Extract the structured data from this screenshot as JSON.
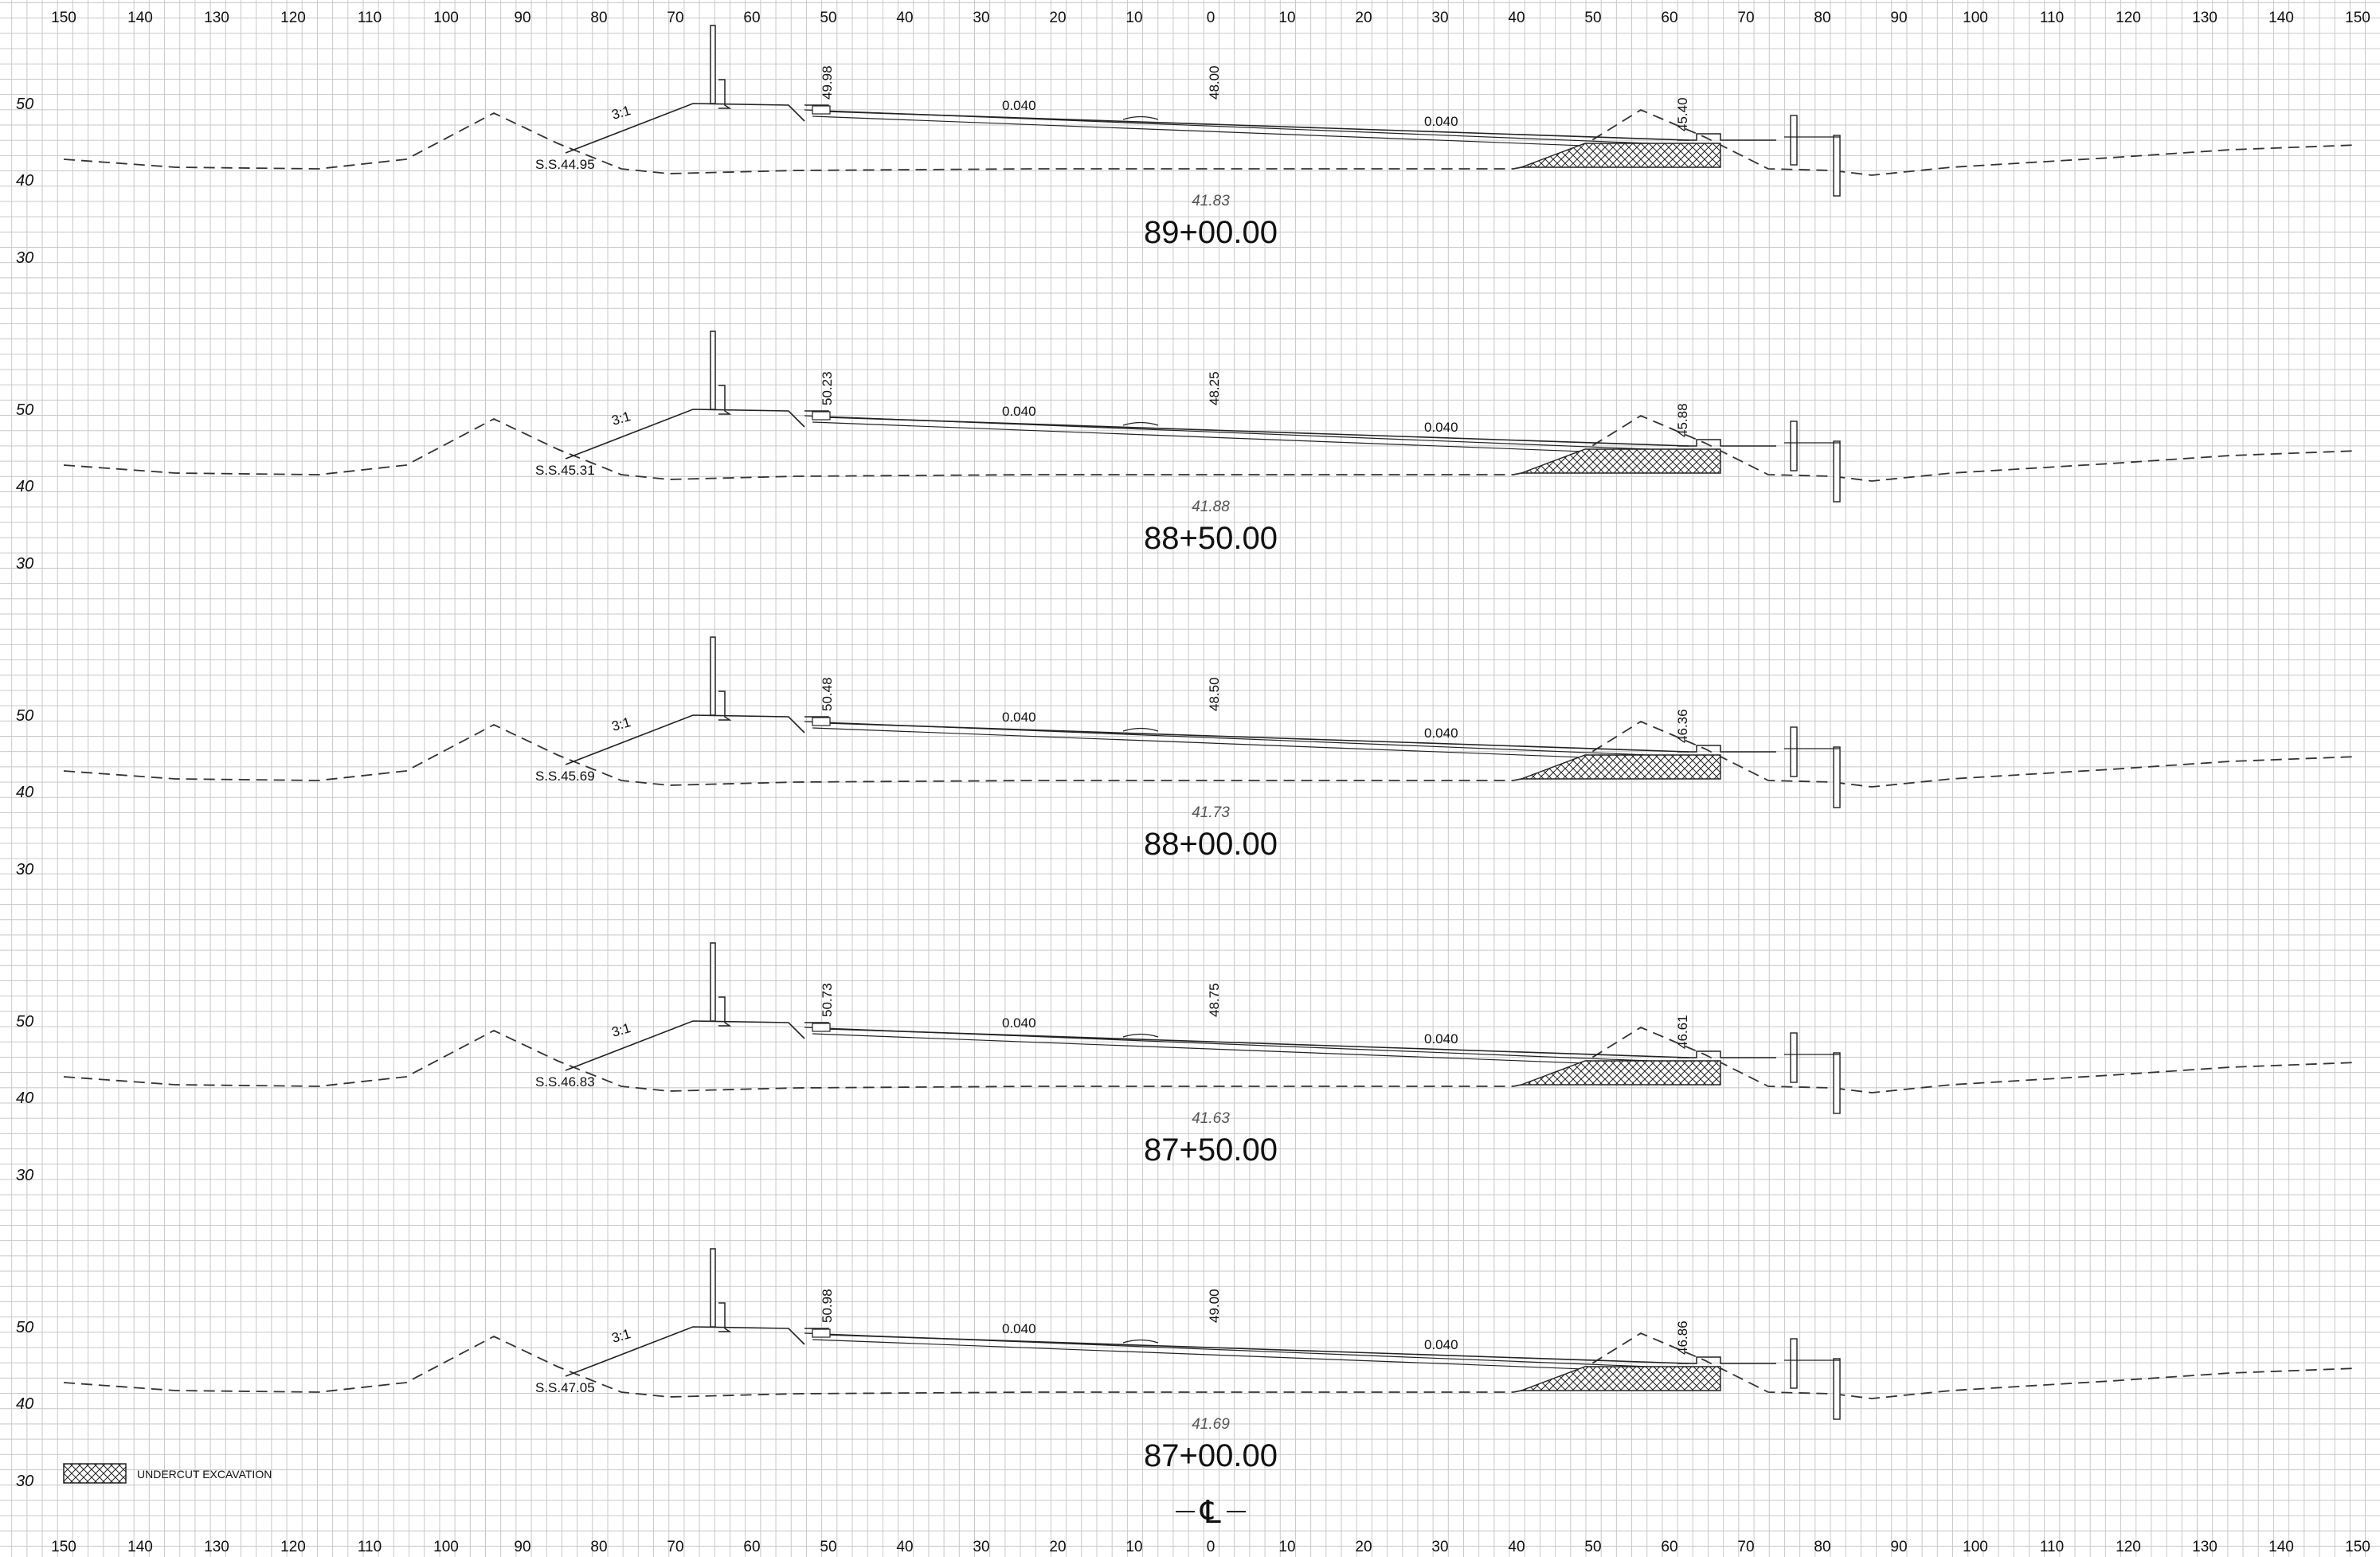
{
  "sheet": {
    "x_ticks": [
      "150",
      "140",
      "130",
      "120",
      "110",
      "100",
      "90",
      "80",
      "70",
      "60",
      "50",
      "40",
      "30",
      "20",
      "10",
      "0",
      "10",
      "20",
      "30",
      "40",
      "50",
      "60",
      "70",
      "80",
      "90",
      "100",
      "110",
      "120",
      "130",
      "140",
      "150"
    ],
    "elev_ticks": [
      "50",
      "40",
      "30"
    ],
    "centerline_symbol": "℄"
  },
  "sections": [
    {
      "station": "89+00.00",
      "ground_elev": "41.83",
      "left_elev": "49.98",
      "cl_elev": "48.00",
      "right_elev": "45.40",
      "slope_left": "0.040",
      "slope_right": "0.040",
      "side_slope": "3:1",
      "ss_label": "S.S.44.95"
    },
    {
      "station": "88+50.00",
      "ground_elev": "41.88",
      "left_elev": "50.23",
      "cl_elev": "48.25",
      "right_elev": "45.88",
      "slope_left": "0.040",
      "slope_right": "0.040",
      "side_slope": "3:1",
      "ss_label": "S.S.45.31"
    },
    {
      "station": "88+00.00",
      "ground_elev": "41.73",
      "left_elev": "50.48",
      "cl_elev": "48.50",
      "right_elev": "46.36",
      "slope_left": "0.040",
      "slope_right": "0.040",
      "side_slope": "3:1",
      "ss_label": "S.S.45.69"
    },
    {
      "station": "87+50.00",
      "ground_elev": "41.63",
      "left_elev": "50.73",
      "cl_elev": "48.75",
      "right_elev": "46.61",
      "slope_left": "0.040",
      "slope_right": "0.040",
      "side_slope": "3:1",
      "ss_label": "S.S.46.83"
    },
    {
      "station": "87+00.00",
      "ground_elev": "41.69",
      "left_elev": "50.98",
      "cl_elev": "49.00",
      "right_elev": "46.86",
      "slope_left": "0.040",
      "slope_right": "0.040",
      "side_slope": "3:1",
      "ss_label": "S.S.47.05"
    }
  ],
  "legend": {
    "label": "UNDERCUT EXCAVATION",
    "symbol": "crosshatch"
  }
}
